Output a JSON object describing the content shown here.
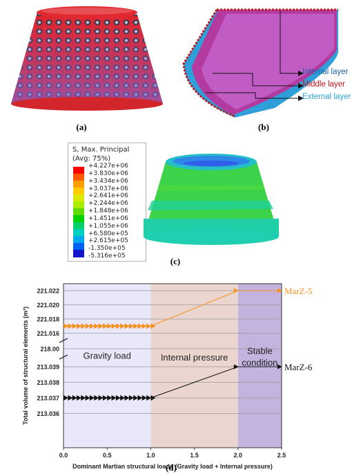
{
  "panels": {
    "a": {
      "caption": "(a)"
    },
    "b": {
      "caption": "(b)",
      "labels": [
        {
          "text": "Internal layer",
          "color": "#1e63a6"
        },
        {
          "text": "Middle layer",
          "color": "#c4161c"
        },
        {
          "text": "External layer",
          "color": "#27a3d8"
        }
      ]
    },
    "c": {
      "caption": "(c)",
      "legend_title_1": "S, Max. Principal",
      "legend_title_2": "(Avg: 75%)",
      "legend_values": [
        "+4.227e+06",
        "+3.830e+06",
        "+3.434e+06",
        "+3.037e+06",
        "+2.641e+06",
        "+2.244e+06",
        "+1.848e+06",
        "+1.451e+06",
        "+1.055e+06",
        "+6.580e+05",
        "+2.615e+05",
        "-1.350e+05",
        "-5.316e+05"
      ],
      "legend_colors": [
        "#ff0000",
        "#ff5a00",
        "#ffa000",
        "#ffcc00",
        "#dde800",
        "#a8ec00",
        "#5cdc00",
        "#00d200",
        "#00d06a",
        "#00d0c0",
        "#00a8e8",
        "#0060f0",
        "#1414c8"
      ]
    },
    "d": {
      "caption": "(d)"
    }
  },
  "chart_data": {
    "type": "line",
    "xlabel": "Dominant Martian structural loads (Gravity load + Internal pressure)",
    "ylabel": "Total volume of structural elements (m³)",
    "xlim": [
      0,
      2.5
    ],
    "x_ticks": [
      "0.0",
      "0.5",
      "1.0",
      "1.5",
      "2.0",
      "2.5"
    ],
    "y_upper_ticks": [
      "221.022",
      "221.020",
      "221.018",
      "221.016"
    ],
    "y_break_tick": "218.00",
    "y_lower_ticks": [
      "213.039",
      "213.038",
      "213.037",
      "213.036"
    ],
    "regions": [
      {
        "label": "Gravity load",
        "x": [
          0,
          1.0
        ],
        "color": "#e8e8fa"
      },
      {
        "label": "Internal pressure",
        "x": [
          1.0,
          2.0
        ],
        "color": "#ead5cf"
      },
      {
        "label_1": "Stable",
        "label_2": "condition",
        "x": [
          2.0,
          2.5
        ],
        "color": "#c3b3de"
      }
    ],
    "series": [
      {
        "name": "MarZ-5",
        "color": "#f5921e",
        "x": [
          0,
          0.05,
          0.1,
          0.15,
          0.2,
          0.25,
          0.3,
          0.35,
          0.4,
          0.45,
          0.5,
          0.55,
          0.6,
          0.65,
          0.7,
          0.75,
          0.8,
          0.85,
          0.9,
          0.95,
          1.0,
          2.0,
          2.5
        ],
        "y": [
          221.017,
          221.017,
          221.017,
          221.017,
          221.017,
          221.017,
          221.017,
          221.017,
          221.017,
          221.017,
          221.017,
          221.017,
          221.017,
          221.017,
          221.017,
          221.017,
          221.017,
          221.017,
          221.017,
          221.017,
          221.017,
          221.022,
          221.022
        ]
      },
      {
        "name": "MarZ-6",
        "color": "#111111",
        "x": [
          0,
          0.05,
          0.1,
          0.15,
          0.2,
          0.25,
          0.3,
          0.35,
          0.4,
          0.45,
          0.5,
          0.55,
          0.6,
          0.65,
          0.7,
          0.75,
          0.8,
          0.85,
          0.9,
          0.95,
          1.0,
          2.0,
          2.5
        ],
        "y": [
          213.037,
          213.037,
          213.037,
          213.037,
          213.037,
          213.037,
          213.037,
          213.037,
          213.037,
          213.037,
          213.037,
          213.037,
          213.037,
          213.037,
          213.037,
          213.037,
          213.037,
          213.037,
          213.037,
          213.037,
          213.037,
          213.039,
          213.039
        ]
      }
    ]
  }
}
